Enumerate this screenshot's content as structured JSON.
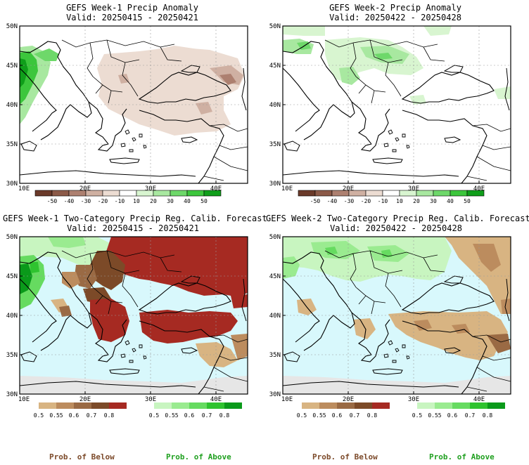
{
  "panels": [
    {
      "id": "p1",
      "title": "GEFS Week-1 Precip Anomaly",
      "valid": "Valid: 20250415 - 20250421"
    },
    {
      "id": "p2",
      "title": "GEFS Week-2 Precip Anomaly",
      "valid": "Valid: 20250422 - 20250428"
    },
    {
      "id": "p3",
      "title": "GEFS Week-1 Two-Category Precip Reg. Calib. Forecast",
      "valid": "Valid: 20250415 - 20250421"
    },
    {
      "id": "p4",
      "title": "GEFS Week-2 Two-Category Precip Reg. Calib. Forecast",
      "valid": "Valid: 20250422 - 20250428"
    }
  ],
  "axes": {
    "lat_labels": [
      "50N",
      "45N",
      "40N",
      "35N",
      "30N"
    ],
    "lon_labels": [
      "10E",
      "20E",
      "30E",
      "40E"
    ]
  },
  "anomaly_colorbar": {
    "labels": [
      "-50",
      "-40",
      "-30",
      "-20",
      "-10",
      "10",
      "20",
      "30",
      "40",
      "50"
    ],
    "colors": [
      "#6b3a2a",
      "#8c5a48",
      "#ad8070",
      "#cfb0a2",
      "#ecdcd2",
      "#ffffff",
      "#d8f5d0",
      "#a8e8a0",
      "#6ed86a",
      "#3cc63c",
      "#0f9e1a"
    ]
  },
  "prob_colorbar": {
    "below_labels": [
      "0.5",
      "0.55",
      "0.6",
      "0.7",
      "0.8"
    ],
    "above_labels": [
      "0.5",
      "0.55",
      "0.6",
      "0.7",
      "0.8"
    ],
    "below_colors": [
      "#d8b482",
      "#bc8c5e",
      "#9a6a44",
      "#7c4a28",
      "#a62a22"
    ],
    "above_colors": [
      "#c8f5c0",
      "#9aeb90",
      "#66db60",
      "#2fc32f",
      "#0a9a1a"
    ]
  },
  "footer": {
    "below_label": "Prob. of Below",
    "above_label": "Prob. of Above",
    "below_color": "#7c4a2a",
    "above_color": "#20a020"
  },
  "colors": {
    "sea": "#d8f8fc",
    "noskill": "#e6e6e6",
    "outline": "#000000"
  }
}
